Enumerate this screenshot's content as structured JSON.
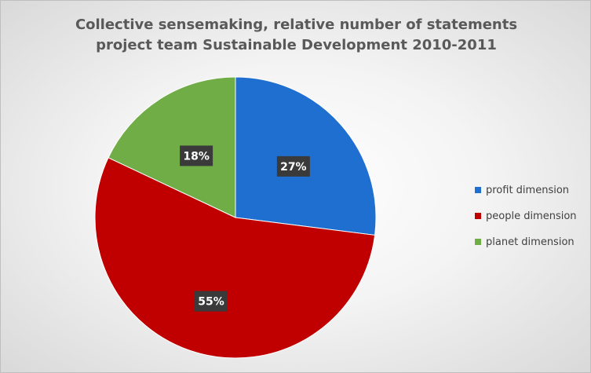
{
  "chart_data": {
    "type": "pie",
    "title": [
      "Collective sensemaking, relative number of statements",
      "project team Sustainable Development 2010-2011"
    ],
    "slices": [
      {
        "label": "profit dimension",
        "value": 27,
        "display": "27%",
        "color": "#1f6fd1"
      },
      {
        "label": "people dimension",
        "value": 55,
        "display": "55%",
        "color": "#c00000"
      },
      {
        "label": "planet dimension",
        "value": 18,
        "display": "18%",
        "color": "#70ad47"
      }
    ],
    "start_angle_deg": 0,
    "direction": "clockwise",
    "legend_position": "right",
    "label_style": {
      "background": "#3a3a3a",
      "color": "#ffffff"
    }
  }
}
